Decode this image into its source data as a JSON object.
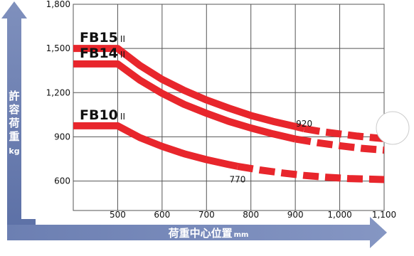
{
  "chart_data": {
    "type": "line",
    "ylabel_chars": [
      "許",
      "容",
      "荷",
      "重",
      "kg"
    ],
    "xlabel": "荷重中心位置",
    "xlabel_unit": "mm",
    "xlim": [
      400,
      1100
    ],
    "ylim": [
      400,
      1800
    ],
    "x_ticks": [
      500,
      600,
      700,
      800,
      900,
      1000,
      1100
    ],
    "x_tick_labels": [
      "500",
      "600",
      "700",
      "800",
      "900",
      "1,000",
      "1,100"
    ],
    "y_ticks": [
      600,
      900,
      1200,
      1500,
      1800
    ],
    "y_tick_labels": [
      "600",
      "900",
      "1,200",
      "1,500",
      "1,800"
    ],
    "grid": true,
    "series": [
      {
        "name": "FB15",
        "suffix": "II",
        "color": "#e8262c",
        "solid": [
          [
            400,
            1500
          ],
          [
            500,
            1500
          ],
          [
            550,
            1385
          ],
          [
            600,
            1290
          ],
          [
            650,
            1215
          ],
          [
            700,
            1150
          ],
          [
            750,
            1095
          ],
          [
            800,
            1045
          ],
          [
            850,
            1005
          ],
          [
            900,
            970
          ],
          [
            920,
            955
          ]
        ],
        "dashed": [
          [
            920,
            955
          ],
          [
            960,
            935
          ],
          [
            1000,
            920
          ],
          [
            1040,
            905
          ],
          [
            1080,
            893
          ],
          [
            1100,
            888
          ]
        ]
      },
      {
        "name": "FB14",
        "suffix": "II",
        "color": "#e8262c",
        "solid": [
          [
            400,
            1395
          ],
          [
            500,
            1395
          ],
          [
            550,
            1285
          ],
          [
            600,
            1195
          ],
          [
            650,
            1120
          ],
          [
            700,
            1060
          ],
          [
            750,
            1005
          ],
          [
            800,
            960
          ],
          [
            850,
            920
          ],
          [
            900,
            885
          ]
        ],
        "dashed": [
          [
            900,
            885
          ],
          [
            950,
            860
          ],
          [
            1000,
            840
          ],
          [
            1050,
            822
          ],
          [
            1100,
            810
          ]
        ]
      },
      {
        "name": "FB10",
        "suffix": "II",
        "color": "#e8262c",
        "solid": [
          [
            400,
            975
          ],
          [
            500,
            975
          ],
          [
            550,
            895
          ],
          [
            600,
            835
          ],
          [
            650,
            785
          ],
          [
            700,
            745
          ],
          [
            750,
            712
          ],
          [
            770,
            700
          ]
        ],
        "dashed": [
          [
            770,
            700
          ],
          [
            820,
            675
          ],
          [
            870,
            655
          ],
          [
            920,
            638
          ],
          [
            970,
            626
          ],
          [
            1020,
            617
          ],
          [
            1100,
            610
          ]
        ]
      }
    ],
    "annotations": [
      {
        "label": "920",
        "x": 920,
        "y": 970
      },
      {
        "label": "770",
        "x": 770,
        "y": 590
      }
    ]
  }
}
